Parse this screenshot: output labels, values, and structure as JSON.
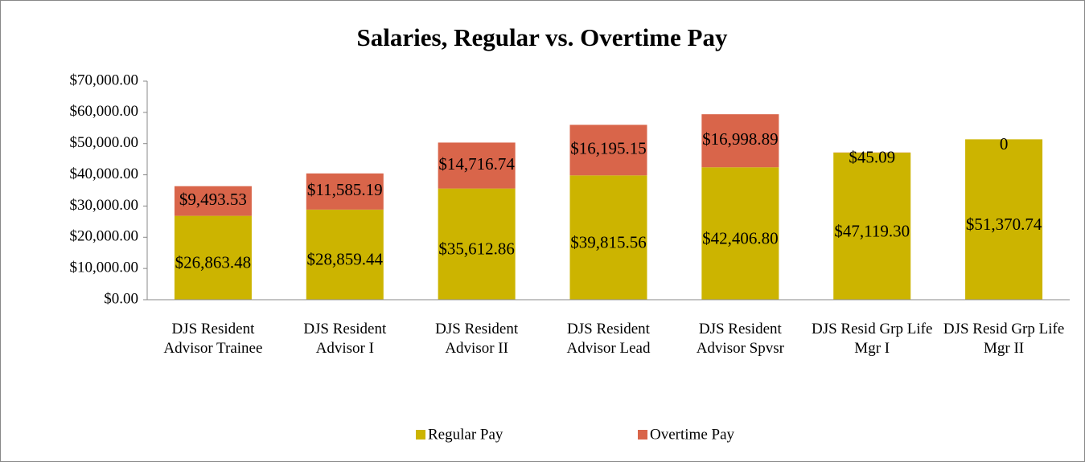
{
  "chart_data": {
    "type": "stacked_bar",
    "title": "Salaries, Regular vs. Overtime Pay",
    "categories": [
      "DJS Resident Advisor Trainee",
      "DJS Resident Advisor I",
      "DJS Resident Advisor II",
      "DJS Resident Advisor Lead",
      "DJS Resident Advisor Spvsr",
      "DJS Resid Grp Life Mgr I",
      "DJS Resid Grp Life Mgr II"
    ],
    "series": [
      {
        "name": "Regular Pay",
        "color": "#ccb400",
        "values": [
          26863.48,
          28859.44,
          35612.86,
          39815.56,
          42406.8,
          47119.3,
          51370.74
        ],
        "value_labels": [
          "$26,863.48",
          "$28,859.44",
          "$35,612.86",
          "$39,815.56",
          "$42,406.80",
          "$47,119.30",
          "$51,370.74"
        ]
      },
      {
        "name": "Overtime Pay",
        "color": "#d9654a",
        "values": [
          9493.53,
          11585.19,
          14716.74,
          16195.15,
          16998.89,
          45.09,
          0
        ],
        "value_labels": [
          "$9,493.53",
          "$11,585.19",
          "$14,716.74",
          "$16,195.15",
          "$16,998.89",
          "$45.09",
          "0"
        ]
      }
    ],
    "ylim": [
      0,
      70000
    ],
    "yticks": [
      {
        "value": 0,
        "label": "$0.00"
      },
      {
        "value": 10000,
        "label": "$10,000.00"
      },
      {
        "value": 20000,
        "label": "$20,000.00"
      },
      {
        "value": 30000,
        "label": "$30,000.00"
      },
      {
        "value": 40000,
        "label": "$40,000.00"
      },
      {
        "value": 50000,
        "label": "$50,000.00"
      },
      {
        "value": 60000,
        "label": "$60,000.00"
      },
      {
        "value": 70000,
        "label": "$70,000.00"
      }
    ],
    "grid": false,
    "legend": "bottom"
  }
}
